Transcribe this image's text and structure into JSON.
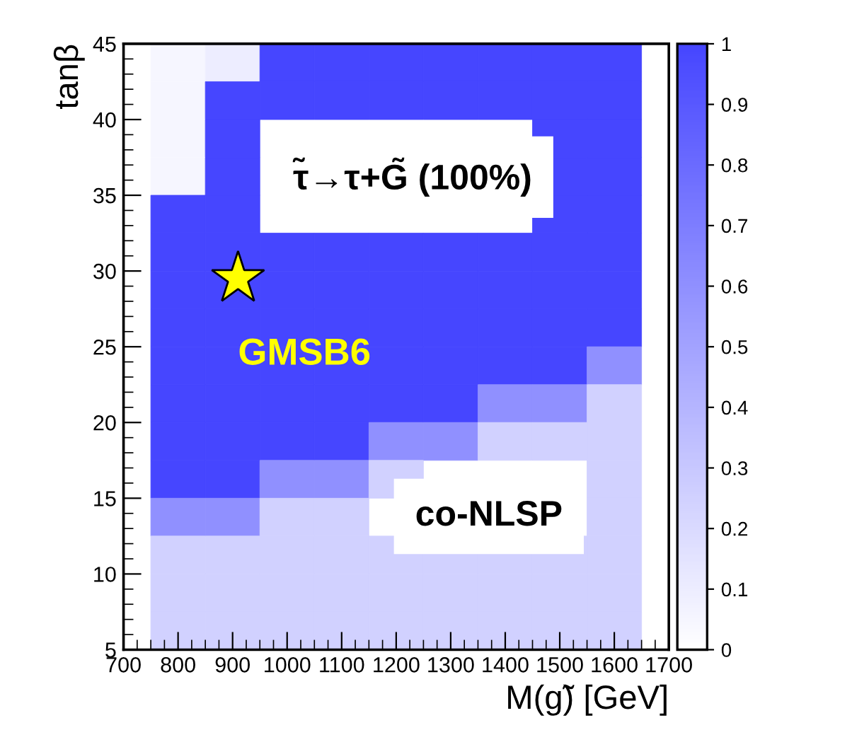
{
  "chart_data": {
    "type": "heatmap",
    "xlabel": "M(g̃) [GeV]",
    "ylabel": "tanβ",
    "x": [
      800,
      900,
      1000,
      1100,
      1200,
      1300,
      1400,
      1500,
      1600
    ],
    "y": [
      43.75,
      41.25,
      38.75,
      36.25,
      33.75,
      31.25,
      28.75,
      26.25,
      23.75,
      21.25,
      18.75,
      16.25,
      13.75,
      11.25,
      8.75,
      6.25
    ],
    "cells": [
      [
        0.05,
        0.1,
        1,
        1,
        1,
        1,
        1,
        1,
        1
      ],
      [
        0.05,
        1,
        1,
        1,
        1,
        1,
        1,
        1,
        1
      ],
      [
        0.05,
        1,
        null,
        null,
        null,
        null,
        null,
        1,
        1
      ],
      [
        0.05,
        1,
        null,
        null,
        null,
        null,
        null,
        1,
        1
      ],
      [
        1,
        1,
        null,
        null,
        null,
        null,
        null,
        1,
        1
      ],
      [
        1,
        1,
        1,
        1,
        1,
        1,
        1,
        1,
        1
      ],
      [
        1,
        1,
        1,
        1,
        1,
        1,
        1,
        1,
        1
      ],
      [
        1,
        1,
        1,
        1,
        1,
        1,
        1,
        1,
        1
      ],
      [
        1,
        1,
        1,
        1,
        1,
        1,
        1,
        1,
        0.6
      ],
      [
        1,
        1,
        1,
        1,
        1,
        1,
        0.6,
        0.6,
        0.25
      ],
      [
        1,
        1,
        1,
        1,
        0.6,
        0.6,
        0.25,
        0.25,
        0.25
      ],
      [
        1,
        1,
        0.6,
        0.6,
        0.25,
        null,
        null,
        null,
        0.25
      ],
      [
        0.6,
        0.6,
        0.25,
        0.25,
        null,
        null,
        null,
        null,
        0.25
      ],
      [
        0.25,
        0.25,
        0.25,
        0.25,
        0.25,
        0.25,
        0.25,
        0.25,
        0.25
      ],
      [
        0.25,
        0.25,
        0.25,
        0.25,
        0.25,
        0.25,
        0.25,
        0.25,
        0.25
      ],
      [
        0.25,
        0.25,
        0.25,
        0.25,
        0.25,
        0.25,
        0.25,
        0.25,
        0.25
      ]
    ],
    "color": "#4646ff",
    "clim": [
      0,
      1
    ],
    "cticks": [
      0,
      0.1,
      0.2,
      0.3,
      0.4,
      0.5,
      0.6,
      0.7,
      0.8,
      0.9,
      1
    ],
    "xlim": [
      700,
      1700
    ],
    "xticks": [
      700,
      800,
      900,
      1000,
      1100,
      1200,
      1300,
      1400,
      1500,
      1600,
      1700
    ],
    "ylim": [
      5,
      45
    ],
    "yticks": [
      5,
      10,
      15,
      20,
      25,
      30,
      35,
      40,
      45
    ],
    "grid": false,
    "series": [
      {
        "name": "GMSB6",
        "type": "scatter",
        "marker": "star",
        "color": "#ffff00",
        "x": [
          910
        ],
        "values": [
          29.5
        ]
      }
    ],
    "annotations": [
      "τ̃→τ+G̃ (100%)",
      "co-NLSP"
    ]
  }
}
